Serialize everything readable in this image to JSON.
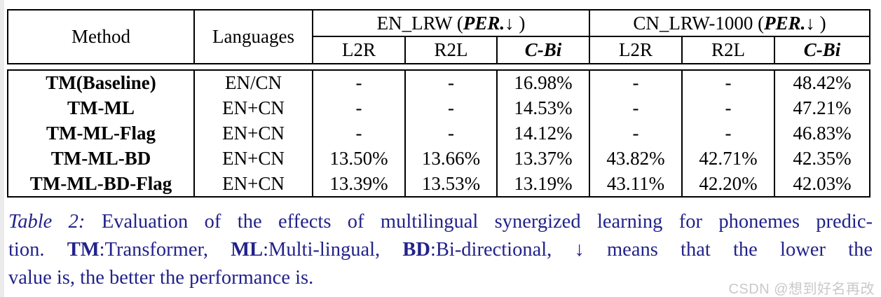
{
  "table": {
    "header": {
      "method": "Method",
      "languages": "Languages",
      "groups": [
        {
          "prefix": "EN_LRW (",
          "metric": "PER.",
          "suffix": " ↓ )"
        },
        {
          "prefix": "CN_LRW-1000 (",
          "metric": "PER.",
          "suffix": " ↓ )"
        }
      ],
      "subcols": [
        "L2R",
        "R2L",
        "C-Bi",
        "L2R",
        "R2L",
        "C-Bi"
      ]
    },
    "rows": [
      [
        "TM(Baseline)",
        "EN/CN",
        "-",
        "-",
        "16.98%",
        "-",
        "-",
        "48.42%"
      ],
      [
        "TM-ML",
        "EN+CN",
        "-",
        "-",
        "14.53%",
        "-",
        "-",
        "47.21%"
      ],
      [
        "TM-ML-Flag",
        "EN+CN",
        "-",
        "-",
        "14.12%",
        "-",
        "-",
        "46.83%"
      ],
      [
        "TM-ML-BD",
        "EN+CN",
        "13.50%",
        "13.66%",
        "13.37%",
        "43.82%",
        "42.71%",
        "42.35%"
      ],
      [
        "TM-ML-BD-Flag",
        "EN+CN",
        "13.39%",
        "13.53%",
        "13.19%",
        "43.11%",
        "42.20%",
        "42.03%"
      ]
    ]
  },
  "caption": {
    "line1": {
      "label": "Table 2:",
      "text": " Evaluation of the effects of multilingual synergized learning for phonemes predic-"
    },
    "line2": [
      "tion.  ",
      "TM",
      ":Transformer, ",
      "ML",
      ":Multi-lingual, ",
      "BD",
      ":Bi-directional, ↓ means that the lower the"
    ],
    "line3": "value is, the better the performance is.",
    "accent_color": "#22228a"
  },
  "watermark": {
    "text": "CSDN @想到好名再改",
    "color": "#c9c9c9"
  }
}
